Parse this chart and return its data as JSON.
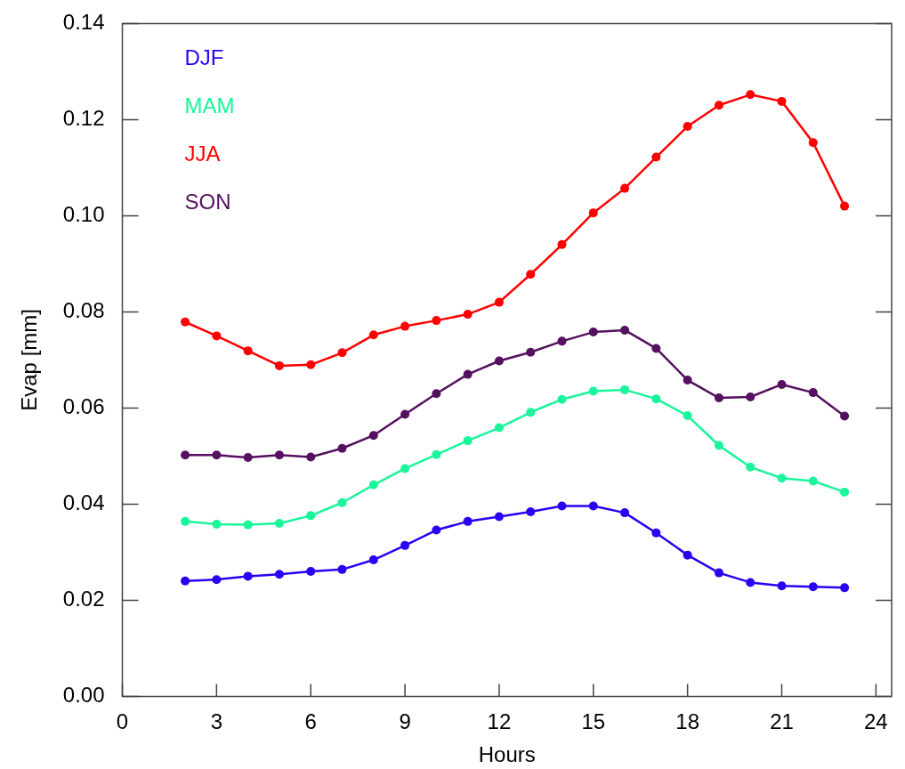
{
  "chart_data": {
    "type": "line",
    "xlabel": "Hours",
    "ylabel": "Evap [mm]",
    "x": [
      2,
      3,
      4,
      5,
      6,
      7,
      8,
      9,
      10,
      11,
      12,
      13,
      14,
      15,
      16,
      17,
      18,
      19,
      20,
      21,
      22,
      23
    ],
    "series": [
      {
        "name": "DJF",
        "color": "#2a00f5",
        "values": [
          0.024,
          0.0243,
          0.025,
          0.0254,
          0.026,
          0.0264,
          0.0284,
          0.0314,
          0.0346,
          0.0364,
          0.0374,
          0.0384,
          0.0396,
          0.0396,
          0.0382,
          0.034,
          0.0294,
          0.0257,
          0.0237,
          0.023,
          0.0228,
          0.0226
        ]
      },
      {
        "name": "MAM",
        "color": "#19f59a",
        "values": [
          0.0364,
          0.0358,
          0.0357,
          0.036,
          0.0376,
          0.0403,
          0.044,
          0.0474,
          0.0503,
          0.0532,
          0.0559,
          0.0591,
          0.0618,
          0.0635,
          0.0638,
          0.0619,
          0.0584,
          0.0522,
          0.0477,
          0.0454,
          0.0448,
          0.0425
        ]
      },
      {
        "name": "JJA",
        "color": "#ff0000",
        "values": [
          0.0779,
          0.075,
          0.0719,
          0.0688,
          0.069,
          0.0715,
          0.0752,
          0.077,
          0.0782,
          0.0795,
          0.082,
          0.0878,
          0.094,
          0.1006,
          0.1057,
          0.1122,
          0.1186,
          0.123,
          0.1252,
          0.1238,
          0.1152,
          0.102
        ]
      },
      {
        "name": "SON",
        "color": "#55105f",
        "values": [
          0.0502,
          0.0502,
          0.0497,
          0.0502,
          0.0498,
          0.0516,
          0.0543,
          0.0587,
          0.063,
          0.067,
          0.0698,
          0.0716,
          0.0739,
          0.0758,
          0.0762,
          0.0724,
          0.0658,
          0.0621,
          0.0623,
          0.0649,
          0.0632,
          0.0583
        ]
      }
    ],
    "xlim": [
      0,
      24.5
    ],
    "xticks": [
      0,
      3,
      6,
      9,
      12,
      15,
      18,
      21,
      24
    ],
    "ylim": [
      0,
      0.14
    ],
    "yticks": [
      {
        "value": 0,
        "label": "0.00"
      },
      {
        "value": 0.02,
        "label": "0.02"
      },
      {
        "value": 0.04,
        "label": "0.04"
      },
      {
        "value": 0.06,
        "label": "0.06"
      },
      {
        "value": 0.08,
        "label": "0.08"
      },
      {
        "value": 0.1,
        "label": "0.10"
      },
      {
        "value": 0.12,
        "label": "0.12"
      },
      {
        "value": 0.14,
        "label": "0.14"
      }
    ],
    "legend": "top left",
    "marker": "circle",
    "line_style": "solid"
  }
}
